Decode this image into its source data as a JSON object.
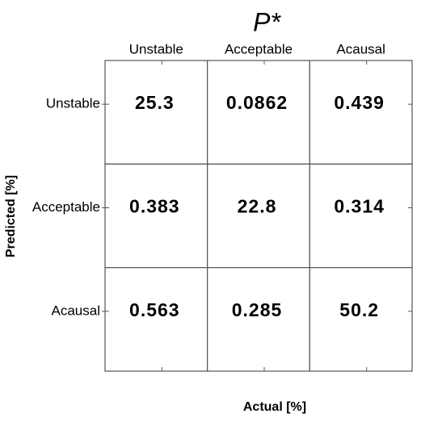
{
  "chart_data": {
    "type": "confusion_matrix",
    "title": "P*",
    "x_categories": [
      "Unstable",
      "Acceptable",
      "Acausal"
    ],
    "y_categories": [
      "Unstable",
      "Acceptable",
      "Acausal"
    ],
    "values": [
      [
        25.3,
        0.0862,
        0.439
      ],
      [
        0.383,
        22.8,
        0.314
      ],
      [
        0.563,
        0.285,
        50.2
      ]
    ],
    "xlabel": "Actual [%]",
    "ylabel": "Predicted [%]"
  }
}
